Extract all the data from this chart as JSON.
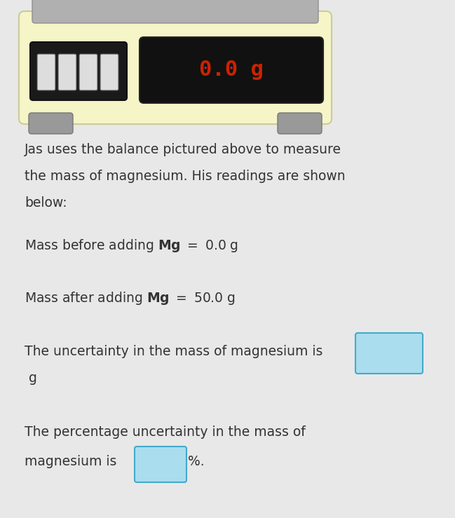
{
  "bg_color": "#e8e8e8",
  "scale_bg": "#f5f5c8",
  "scale_top_bar": "#a0a0a0",
  "scale_feet_color": "#909090",
  "display_bg": "#111111",
  "display_text": "0.0 g",
  "display_text_color": "#cc2200",
  "button_area_bg": "#222222",
  "button_color": "#cccccc",
  "line1": "Jas uses the balance pictured above to measure",
  "line2": "the mass of magnesium. His readings are shown",
  "line3": "below:",
  "line4": "Mass before adding Mg = 0.0 g",
  "line5": "Mass after adding Mg = 50.0 g",
  "line6": "The uncertainty in the mass of magnesium is",
  "line7": " g",
  "line8": "The percentage uncertainty in the mass of",
  "line9": "magnesium is",
  "line9_end": "%.",
  "text_color": "#333333",
  "box_color": "#aaddee",
  "box_border": "#44aacc",
  "font_size_body": 13.5,
  "font_size_math": 14
}
